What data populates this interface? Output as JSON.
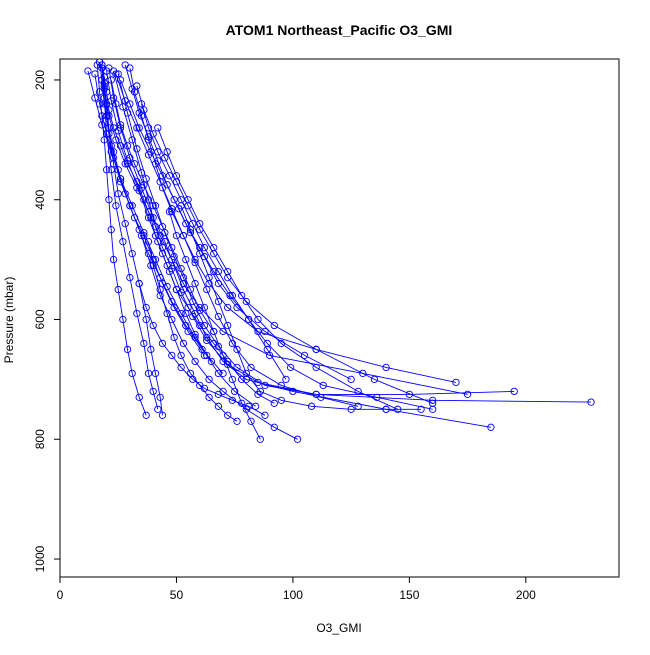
{
  "chart_data": {
    "type": "line",
    "title": "ATOM1 Northeast_Pacific O3_GMI",
    "xlabel": "O3_GMI",
    "ylabel": "Pressure (mbar)",
    "xlim": [
      0,
      240
    ],
    "ylim": [
      1030,
      165
    ],
    "y_inverted": true,
    "x_ticks": [
      0,
      50,
      100,
      150,
      200
    ],
    "y_ticks": [
      200,
      400,
      600,
      800,
      1000
    ],
    "grid": false,
    "legend": "none",
    "series_color": "#0000ff",
    "marker": "open-circle",
    "series": [
      {
        "x": [
          17,
          19,
          20,
          21,
          23,
          26,
          29,
          33,
          36,
          39,
          41,
          44,
          47,
          50,
          55,
          60,
          66,
          72,
          78,
          85,
          92
        ],
        "y": [
          170,
          195,
          220,
          250,
          280,
          310,
          340,
          370,
          400,
          430,
          460,
          490,
          520,
          550,
          580,
          610,
          640,
          670,
          700,
          725,
          740
        ]
      },
      {
        "x": [
          18,
          19,
          21,
          24,
          28,
          33,
          38,
          43,
          48,
          53,
          60,
          70,
          90,
          130,
          175
        ],
        "y": [
          175,
          215,
          260,
          300,
          340,
          380,
          420,
          460,
          500,
          540,
          580,
          620,
          660,
          690,
          725
        ]
      },
      {
        "x": [
          21,
          23,
          26,
          30,
          35,
          40,
          45,
          49,
          53,
          58,
          63,
          70,
          80,
          100,
          140,
          185
        ],
        "y": [
          180,
          230,
          280,
          330,
          380,
          430,
          470,
          510,
          550,
          590,
          630,
          670,
          700,
          720,
          750,
          780
        ]
      },
      {
        "x": [
          23,
          27,
          31,
          35,
          38,
          41,
          44,
          48,
          52,
          57,
          63,
          72,
          85,
          110,
          160,
          228
        ],
        "y": [
          185,
          245,
          300,
          355,
          400,
          445,
          480,
          515,
          555,
          595,
          635,
          675,
          705,
          725,
          735,
          738
        ]
      },
      {
        "x": [
          25,
          29,
          33,
          37,
          41,
          45,
          49,
          53,
          57,
          62,
          68,
          76,
          88,
          110,
          150,
          195
        ],
        "y": [
          190,
          255,
          315,
          365,
          410,
          455,
          495,
          530,
          570,
          610,
          645,
          680,
          710,
          725,
          725,
          720
        ]
      },
      {
        "x": [
          22,
          24,
          26,
          29,
          32,
          36,
          40,
          44,
          48,
          52,
          56,
          60,
          66
        ],
        "y": [
          200,
          240,
          275,
          310,
          340,
          375,
          410,
          445,
          480,
          515,
          550,
          585,
          620
        ]
      },
      {
        "x": [
          19,
          20,
          22,
          25,
          28,
          32,
          36,
          40,
          44,
          49,
          55,
          62
        ],
        "y": [
          210,
          260,
          310,
          350,
          390,
          430,
          460,
          500,
          540,
          580,
          620,
          660
        ]
      },
      {
        "x": [
          18,
          19,
          20,
          21,
          23,
          26,
          30,
          35,
          39,
          43,
          48,
          53,
          58,
          64,
          70,
          80,
          92,
          102
        ],
        "y": [
          175,
          205,
          240,
          280,
          320,
          365,
          410,
          460,
          510,
          560,
          600,
          640,
          670,
          700,
          720,
          750,
          780,
          800
        ]
      },
      {
        "x": [
          30,
          32,
          35,
          38,
          41,
          44,
          48,
          53,
          58,
          64,
          72,
          85,
          110,
          140,
          170
        ],
        "y": [
          180,
          220,
          260,
          300,
          340,
          380,
          420,
          460,
          500,
          540,
          580,
          620,
          650,
          680,
          705
        ]
      },
      {
        "x": [
          28,
          31,
          34,
          38,
          42,
          46,
          51,
          56,
          62,
          68,
          76,
          88,
          105,
          125
        ],
        "y": [
          175,
          215,
          255,
          295,
          335,
          375,
          415,
          455,
          495,
          540,
          580,
          620,
          660,
          700
        ]
      },
      {
        "x": [
          20,
          22,
          25,
          29,
          34,
          38,
          42,
          46,
          50,
          54,
          58,
          63,
          68,
          75,
          84
        ],
        "y": [
          185,
          235,
          285,
          335,
          385,
          430,
          470,
          510,
          550,
          590,
          625,
          660,
          690,
          720,
          745
        ]
      },
      {
        "x": [
          17,
          18,
          19,
          21,
          23,
          25,
          28,
          31,
          34,
          37,
          39,
          41,
          43,
          44
        ],
        "y": [
          170,
          200,
          240,
          290,
          340,
          390,
          440,
          490,
          540,
          600,
          650,
          690,
          730,
          760
        ]
      },
      {
        "x": [
          18,
          19,
          20,
          22,
          24,
          27,
          30,
          33,
          36,
          38,
          40,
          42
        ],
        "y": [
          180,
          230,
          290,
          350,
          410,
          470,
          530,
          590,
          640,
          690,
          720,
          750
        ]
      },
      {
        "x": [
          16,
          17,
          18,
          19,
          20,
          21,
          22,
          23,
          25,
          27,
          29,
          31,
          34,
          37
        ],
        "y": [
          175,
          220,
          260,
          300,
          350,
          400,
          450,
          500,
          550,
          600,
          650,
          690,
          730,
          760
        ]
      },
      {
        "x": [
          26,
          30,
          34,
          39,
          44,
          49,
          54,
          60,
          66,
          73,
          81,
          89,
          97
        ],
        "y": [
          200,
          240,
          280,
          320,
          360,
          400,
          440,
          480,
          520,
          560,
          600,
          650,
          700
        ]
      },
      {
        "x": [
          24,
          28,
          33,
          38,
          43,
          48,
          53,
          58,
          63,
          68,
          74,
          82,
          95,
          112,
          128
        ],
        "y": [
          190,
          235,
          280,
          325,
          370,
          415,
          460,
          505,
          550,
          595,
          640,
          680,
          710,
          730,
          745
        ]
      },
      {
        "x": [
          33,
          36,
          40,
          45,
          50,
          55,
          60,
          66,
          72,
          80,
          92,
          110,
          135,
          160
        ],
        "y": [
          210,
          250,
          290,
          330,
          370,
          410,
          450,
          490,
          530,
          570,
          610,
          650,
          700,
          740
        ]
      },
      {
        "x": [
          15,
          17,
          20,
          23,
          26,
          30,
          34,
          38,
          43,
          48,
          54,
          61,
          70
        ],
        "y": [
          190,
          240,
          290,
          330,
          370,
          410,
          450,
          490,
          530,
          570,
          610,
          650,
          690
        ]
      },
      {
        "x": [
          12,
          15,
          18,
          22,
          26,
          31,
          36,
          41,
          46,
          52,
          58,
          65
        ],
        "y": [
          185,
          230,
          275,
          320,
          365,
          410,
          455,
          500,
          545,
          590,
          630,
          670
        ]
      },
      {
        "x": [
          35,
          38,
          42,
          47,
          52,
          57,
          62,
          68,
          74,
          81,
          89,
          99,
          113,
          136,
          160
        ],
        "y": [
          240,
          280,
          320,
          360,
          400,
          440,
          480,
          520,
          560,
          600,
          640,
          680,
          710,
          730,
          750
        ]
      },
      {
        "x": [
          42,
          46,
          50,
          55,
          60,
          66,
          72,
          78,
          85,
          95,
          110,
          128,
          145
        ],
        "y": [
          280,
          320,
          360,
          400,
          440,
          480,
          520,
          560,
          600,
          640,
          680,
          720,
          750
        ]
      },
      {
        "x": [
          52,
          56,
          60,
          64,
          68,
          72,
          76,
          80,
          86,
          95,
          108,
          125,
          140,
          155
        ],
        "y": [
          410,
          450,
          490,
          530,
          570,
          610,
          650,
          690,
          720,
          735,
          745,
          750,
          750,
          750
        ]
      },
      {
        "x": [
          47,
          50,
          54,
          58,
          62,
          66,
          70,
          74,
          78,
          82,
          86
        ],
        "y": [
          420,
          460,
          500,
          540,
          580,
          620,
          660,
          700,
          740,
          770,
          800
        ]
      },
      {
        "x": [
          38,
          40,
          43,
          46,
          49,
          52,
          56,
          60,
          64,
          68,
          72,
          76
        ],
        "y": [
          470,
          510,
          550,
          590,
          630,
          660,
          690,
          710,
          730,
          745,
          760,
          770
        ]
      },
      {
        "x": [
          34,
          37,
          40,
          44,
          48,
          52,
          57,
          62,
          68,
          74,
          81,
          88
        ],
        "y": [
          540,
          580,
          610,
          640,
          660,
          680,
          700,
          715,
          725,
          735,
          745,
          760
        ]
      }
    ]
  }
}
